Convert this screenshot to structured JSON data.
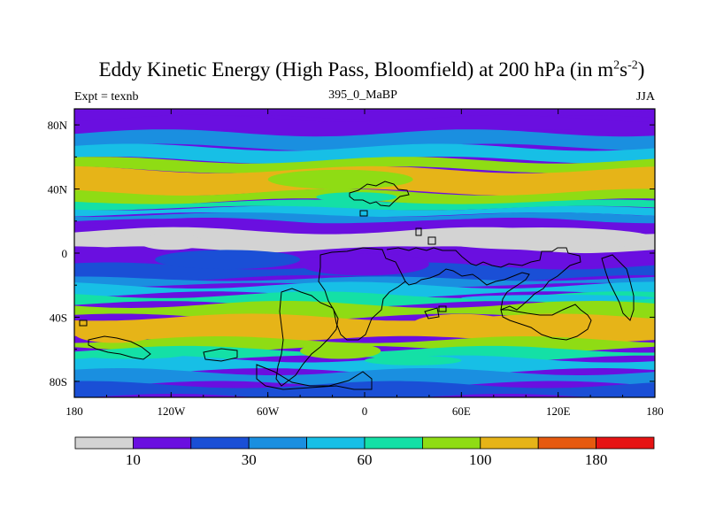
{
  "title": {
    "main": "Eddy Kinetic Energy (High Pass, Bloomfield) at 200 hPa (in m",
    "sup1": "2",
    "mid": "s",
    "sup2": "-2",
    "close": ")"
  },
  "subtitle": "395_0_MaBP",
  "left_label": "Expt = texnb",
  "right_label": "JJA",
  "map": {
    "lon_range": [
      -180,
      180
    ],
    "lat_range": [
      -90,
      90
    ],
    "x_ticks": [
      {
        "lon": -180,
        "label": "180"
      },
      {
        "lon": -120,
        "label": "120W"
      },
      {
        "lon": -60,
        "label": "60W"
      },
      {
        "lon": 0,
        "label": "0"
      },
      {
        "lon": 60,
        "label": "60E"
      },
      {
        "lon": 120,
        "label": "120E"
      },
      {
        "lon": 180,
        "label": "180"
      }
    ],
    "y_ticks": [
      {
        "lat": 80,
        "label": "80N"
      },
      {
        "lat": 40,
        "label": "40N"
      },
      {
        "lat": 0,
        "label": "0"
      },
      {
        "lat": -40,
        "label": "40S"
      },
      {
        "lat": -80,
        "label": "80S"
      }
    ]
  },
  "colorbar": {
    "colors": [
      "#d3d3d3",
      "#6a0fe0",
      "#1a4fd6",
      "#1a8fe0",
      "#17bfe6",
      "#14e0a6",
      "#8fdc14",
      "#e6b418",
      "#e65a0f",
      "#e61414"
    ],
    "labels": [
      {
        "value": "10",
        "after_box": 1
      },
      {
        "value": "30",
        "after_box": 3
      },
      {
        "value": "60",
        "after_box": 5
      },
      {
        "value": "100",
        "after_box": 7
      },
      {
        "value": "180",
        "after_box": 9
      }
    ]
  },
  "zonal_bands": [
    {
      "lat_top": 90,
      "lat_bottom": 84,
      "level": 1
    },
    {
      "lat_top": 84,
      "lat_bottom": 75,
      "level": 1
    },
    {
      "lat_top": 75,
      "lat_bottom": 66,
      "level": 3
    },
    {
      "lat_top": 66,
      "lat_bottom": 58,
      "level": 4
    },
    {
      "lat_top": 58,
      "lat_bottom": 52,
      "level": 6
    },
    {
      "lat_top": 52,
      "lat_bottom": 38,
      "level": 7
    },
    {
      "lat_top": 38,
      "lat_bottom": 32,
      "level": 6
    },
    {
      "lat_top": 32,
      "lat_bottom": 28,
      "level": 5
    },
    {
      "lat_top": 28,
      "lat_bottom": 24,
      "level": 4
    },
    {
      "lat_top": 24,
      "lat_bottom": 20,
      "level": 3
    },
    {
      "lat_top": 20,
      "lat_bottom": 14,
      "level": 1
    },
    {
      "lat_top": 14,
      "lat_bottom": 2,
      "level": 0
    },
    {
      "lat_top": 2,
      "lat_bottom": -8,
      "level": 1
    },
    {
      "lat_top": -8,
      "lat_bottom": -16,
      "level": 2
    },
    {
      "lat_top": -16,
      "lat_bottom": -20,
      "level": 3
    },
    {
      "lat_top": -20,
      "lat_bottom": -26,
      "level": 4
    },
    {
      "lat_top": -26,
      "lat_bottom": -32,
      "level": 5
    },
    {
      "lat_top": -32,
      "lat_bottom": -40,
      "level": 6
    },
    {
      "lat_top": -40,
      "lat_bottom": -54,
      "level": 7
    },
    {
      "lat_top": -54,
      "lat_bottom": -60,
      "level": 6
    },
    {
      "lat_top": -60,
      "lat_bottom": -66,
      "level": 5
    },
    {
      "lat_top": -66,
      "lat_bottom": -74,
      "level": 4
    },
    {
      "lat_top": -74,
      "lat_bottom": -82,
      "level": 3
    },
    {
      "lat_top": -82,
      "lat_bottom": -90,
      "level": 2
    }
  ],
  "field_patches": [
    {
      "lon": [
        -140,
        -100
      ],
      "lat": [
        12,
        2
      ],
      "level": 0
    },
    {
      "lon": [
        40,
        180
      ],
      "lat": [
        16,
        2
      ],
      "level": 0
    },
    {
      "lon": [
        -130,
        -40
      ],
      "lat": [
        2,
        -10
      ],
      "level": 2
    },
    {
      "lon": [
        -40,
        40
      ],
      "lat": [
        0,
        -14
      ],
      "level": 1
    },
    {
      "lon": [
        -180,
        -130
      ],
      "lat": [
        -44,
        -56
      ],
      "level": 7
    },
    {
      "lon": [
        30,
        90
      ],
      "lat": [
        -38,
        -50
      ],
      "level": 7
    },
    {
      "lon": [
        -40,
        10
      ],
      "lat": [
        -56,
        -66
      ],
      "level": 6
    },
    {
      "lon": [
        0,
        60
      ],
      "lat": [
        -64,
        -70
      ],
      "level": 5
    },
    {
      "lon": [
        -60,
        30
      ],
      "lat": [
        40,
        52
      ],
      "level": 6
    },
    {
      "lon": [
        -30,
        20
      ],
      "lat": [
        32,
        38
      ],
      "level": 5
    },
    {
      "lon": [
        60,
        180
      ],
      "lat": [
        -26,
        -30
      ],
      "level": 4
    },
    {
      "lon": [
        -180,
        -110
      ],
      "lat": [
        -60,
        -66
      ],
      "level": 5
    }
  ]
}
